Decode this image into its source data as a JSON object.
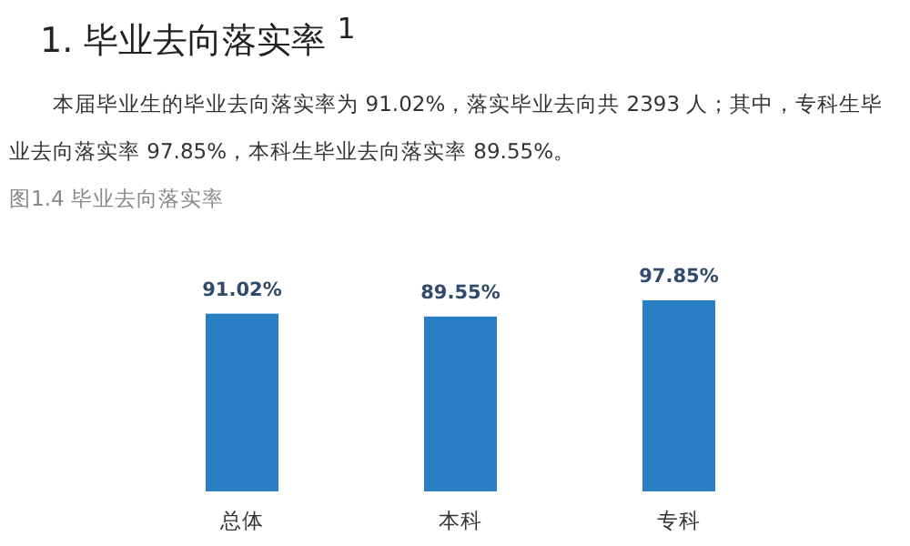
{
  "chart_data": {
    "type": "bar",
    "title": "1.  毕业去向落实率 $^{1}$",
    "subtitle": "本届毕业生的毕业去向落实率为 91.02%，落实毕业去向共 2393 人；其中，专科生毕业去向落实率 97.85%，本科生毕业去向落实率 89.55%。",
    "annotations": [
      "图1.4 毕业去向落实率"
    ],
    "categories": [
      "总体",
      "本科",
      "专科"
    ],
    "values": [
      91.02,
      89.55,
      97.85
    ],
    "color": "#2a7fc4",
    "value_labels": [
      "91.02%",
      "89.55%",
      "97.85%"
    ],
    "tick_labels": "x"
  }
}
